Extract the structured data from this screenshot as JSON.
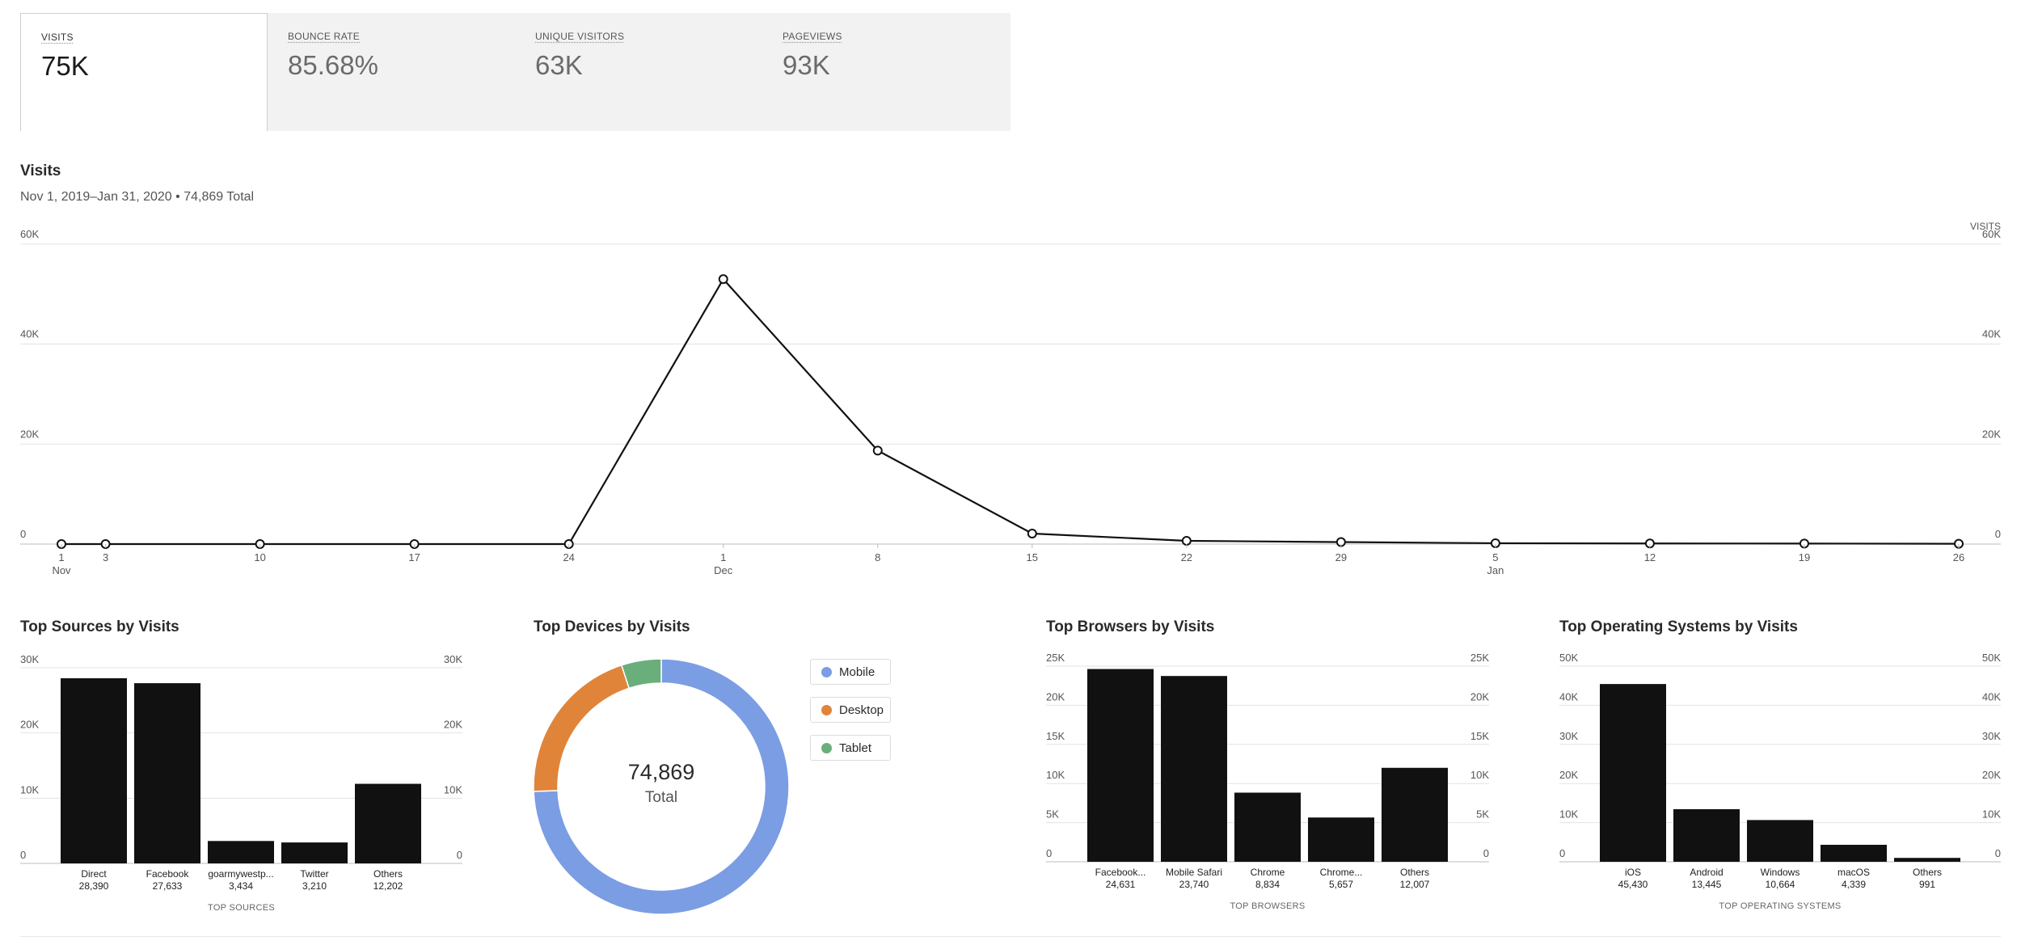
{
  "metrics": [
    {
      "label": "VISITS",
      "value": "75K",
      "active": true
    },
    {
      "label": "BOUNCE RATE",
      "value": "85.68%",
      "active": false
    },
    {
      "label": "UNIQUE VISITORS",
      "value": "63K",
      "active": false
    },
    {
      "label": "PAGEVIEWS",
      "value": "93K",
      "active": false
    }
  ],
  "visits_section": {
    "title": "Visits",
    "subtitle": "Nov 1, 2019–Jan 31, 2020 • 74,869 Total"
  },
  "sources_section": {
    "title": "Top Sources by Visits"
  },
  "devices_section": {
    "title": "Top Devices by Visits",
    "center_value": "74,869",
    "center_label": "Total"
  },
  "browsers_section": {
    "title": "Top Browsers by Visits"
  },
  "os_section": {
    "title": "Top Operating Systems by Visits"
  },
  "chart_data": [
    {
      "type": "line",
      "title": "",
      "ylabel": "VISITS",
      "ylim": [
        0,
        60000
      ],
      "y_ticks": [
        "0",
        "20K",
        "40K",
        "60K"
      ],
      "x_labels": [
        {
          "day": "1",
          "month": "Nov"
        },
        {
          "day": "3",
          "month": ""
        },
        {
          "day": "10",
          "month": ""
        },
        {
          "day": "17",
          "month": ""
        },
        {
          "day": "24",
          "month": ""
        },
        {
          "day": "1",
          "month": "Dec"
        },
        {
          "day": "8",
          "month": ""
        },
        {
          "day": "15",
          "month": ""
        },
        {
          "day": "22",
          "month": ""
        },
        {
          "day": "29",
          "month": ""
        },
        {
          "day": "5",
          "month": "Jan"
        },
        {
          "day": "12",
          "month": ""
        },
        {
          "day": "19",
          "month": ""
        },
        {
          "day": "26",
          "month": ""
        }
      ],
      "x": [
        "2019-11-01",
        "2019-11-03",
        "2019-11-10",
        "2019-11-17",
        "2019-11-24",
        "2019-12-01",
        "2019-12-08",
        "2019-12-15",
        "2019-12-22",
        "2019-12-29",
        "2020-01-05",
        "2020-01-12",
        "2020-01-19",
        "2020-01-26"
      ],
      "values": [
        0,
        0,
        0,
        0,
        0,
        53000,
        18700,
        2100,
        650,
        400,
        170,
        120,
        100,
        60
      ],
      "grid": true,
      "color": "#111111"
    },
    {
      "type": "bar",
      "title": "",
      "xlabel": "TOP SOURCES",
      "categories": [
        "Direct",
        "Facebook",
        "goarmywestp...",
        "Twitter",
        "Others"
      ],
      "labels": [
        "28,390",
        "27,633",
        "3,434",
        "3,210",
        "12,202"
      ],
      "values": [
        28390,
        27633,
        3434,
        3210,
        12202
      ],
      "ylim": [
        0,
        30000
      ],
      "y_ticks": [
        "0",
        "10K",
        "20K",
        "30K"
      ],
      "grid": true
    },
    {
      "type": "pie",
      "title": "",
      "categories": [
        "Mobile",
        "Desktop",
        "Tablet"
      ],
      "values": [
        55700,
        15400,
        3769
      ],
      "colors": [
        "#7b9de3",
        "#e0843a",
        "#6aae7c"
      ],
      "legend": "right"
    },
    {
      "type": "bar",
      "title": "",
      "xlabel": "TOP BROWSERS",
      "categories": [
        "Facebook...",
        "Mobile Safari",
        "Chrome",
        "Chrome...",
        "Others"
      ],
      "labels": [
        "24,631",
        "23,740",
        "8,834",
        "5,657",
        "12,007"
      ],
      "values": [
        24631,
        23740,
        8834,
        5657,
        12007
      ],
      "ylim": [
        0,
        25000
      ],
      "y_ticks": [
        "0",
        "5K",
        "10K",
        "15K",
        "20K",
        "25K"
      ],
      "grid": true
    },
    {
      "type": "bar",
      "title": "",
      "xlabel": "TOP OPERATING SYSTEMS",
      "categories": [
        "iOS",
        "Android",
        "Windows",
        "macOS",
        "Others"
      ],
      "labels": [
        "45,430",
        "13,445",
        "10,664",
        "4,339",
        "991"
      ],
      "values": [
        45430,
        13445,
        10664,
        4339,
        991
      ],
      "ylim": [
        0,
        50000
      ],
      "y_ticks": [
        "0",
        "10K",
        "20K",
        "30K",
        "40K",
        "50K"
      ],
      "grid": true
    }
  ]
}
